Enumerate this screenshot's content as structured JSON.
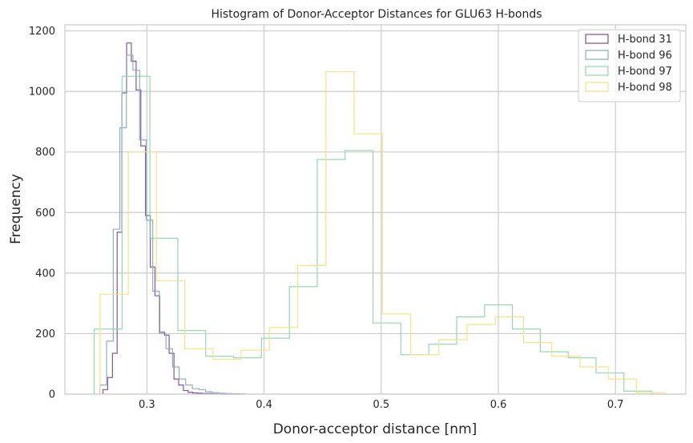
{
  "chart_data": {
    "type": "histogram-step",
    "title": "Histogram of Donor-Acceptor Distances for GLU63 H-bonds",
    "xlabel": "Donor-acceptor distance [nm]",
    "ylabel": "Frequency",
    "xlim": [
      0.23,
      0.76
    ],
    "ylim": [
      0,
      1220
    ],
    "xticks": [
      0.3,
      0.4,
      0.5,
      0.6,
      0.7
    ],
    "xtick_labels": [
      "0.3",
      "0.4",
      "0.5",
      "0.6",
      "0.7"
    ],
    "yticks": [
      0,
      200,
      400,
      600,
      800,
      1000,
      1200
    ],
    "ytick_labels": [
      "0",
      "200",
      "400",
      "600",
      "800",
      "1000",
      "1200"
    ],
    "grid": true,
    "legend_position": "top-right",
    "series": [
      {
        "name": "H-bond 31",
        "color": "#7a4f8e",
        "edges": [
          0.2625,
          0.2665,
          0.2706,
          0.2746,
          0.2787,
          0.2827,
          0.2867,
          0.2908,
          0.2948,
          0.2988,
          0.3029,
          0.3069,
          0.311,
          0.315,
          0.319,
          0.3231,
          0.3271,
          0.3312,
          0.3352,
          0.3392,
          0.3433,
          0.3473,
          0.3513,
          0.3554,
          0.3594,
          0.3635,
          0.3675,
          0.3715,
          0.3756,
          0.3796
        ],
        "counts": [
          15,
          55,
          135,
          535,
          995,
          1160,
          1100,
          1005,
          820,
          590,
          420,
          325,
          205,
          195,
          135,
          50,
          30,
          12,
          6,
          4,
          3,
          2,
          2,
          1,
          1,
          0,
          0,
          0,
          0
        ]
      },
      {
        "name": "H-bond 96",
        "color": "#8aa9bf",
        "edges": [
          0.26,
          0.2656,
          0.2713,
          0.2769,
          0.2825,
          0.2881,
          0.2938,
          0.2994,
          0.305,
          0.3106,
          0.3163,
          0.3219,
          0.3275,
          0.3331,
          0.3388,
          0.3444,
          0.35,
          0.3556,
          0.3613,
          0.3669,
          0.3725,
          0.3781,
          0.3838
        ],
        "counts": [
          30,
          175,
          545,
          880,
          1120,
          1070,
          840,
          575,
          340,
          200,
          150,
          90,
          50,
          30,
          18,
          15,
          8,
          5,
          3,
          2,
          1,
          1
        ]
      },
      {
        "name": "H-bond 97",
        "color": "#8fd6ad",
        "edges": [
          0.255,
          0.2788,
          0.3026,
          0.3264,
          0.3502,
          0.374,
          0.3978,
          0.4216,
          0.4454,
          0.4692,
          0.493,
          0.5168,
          0.5406,
          0.5644,
          0.5882,
          0.612,
          0.6358,
          0.6596,
          0.6834,
          0.7072,
          0.731
        ],
        "counts": [
          215,
          1050,
          515,
          210,
          125,
          120,
          185,
          355,
          775,
          805,
          235,
          130,
          165,
          255,
          295,
          215,
          140,
          120,
          70,
          10
        ]
      },
      {
        "name": "H-bond 98",
        "color": "#f7e17e",
        "edges": [
          0.26,
          0.2841,
          0.3082,
          0.3323,
          0.3564,
          0.3805,
          0.4046,
          0.4287,
          0.4528,
          0.4769,
          0.501,
          0.5251,
          0.5492,
          0.5733,
          0.5974,
          0.6215,
          0.6456,
          0.6697,
          0.6938,
          0.7179,
          0.742
        ],
        "counts": [
          330,
          800,
          375,
          150,
          115,
          145,
          220,
          425,
          1065,
          860,
          265,
          130,
          180,
          230,
          255,
          170,
          125,
          90,
          50,
          5
        ]
      }
    ]
  }
}
